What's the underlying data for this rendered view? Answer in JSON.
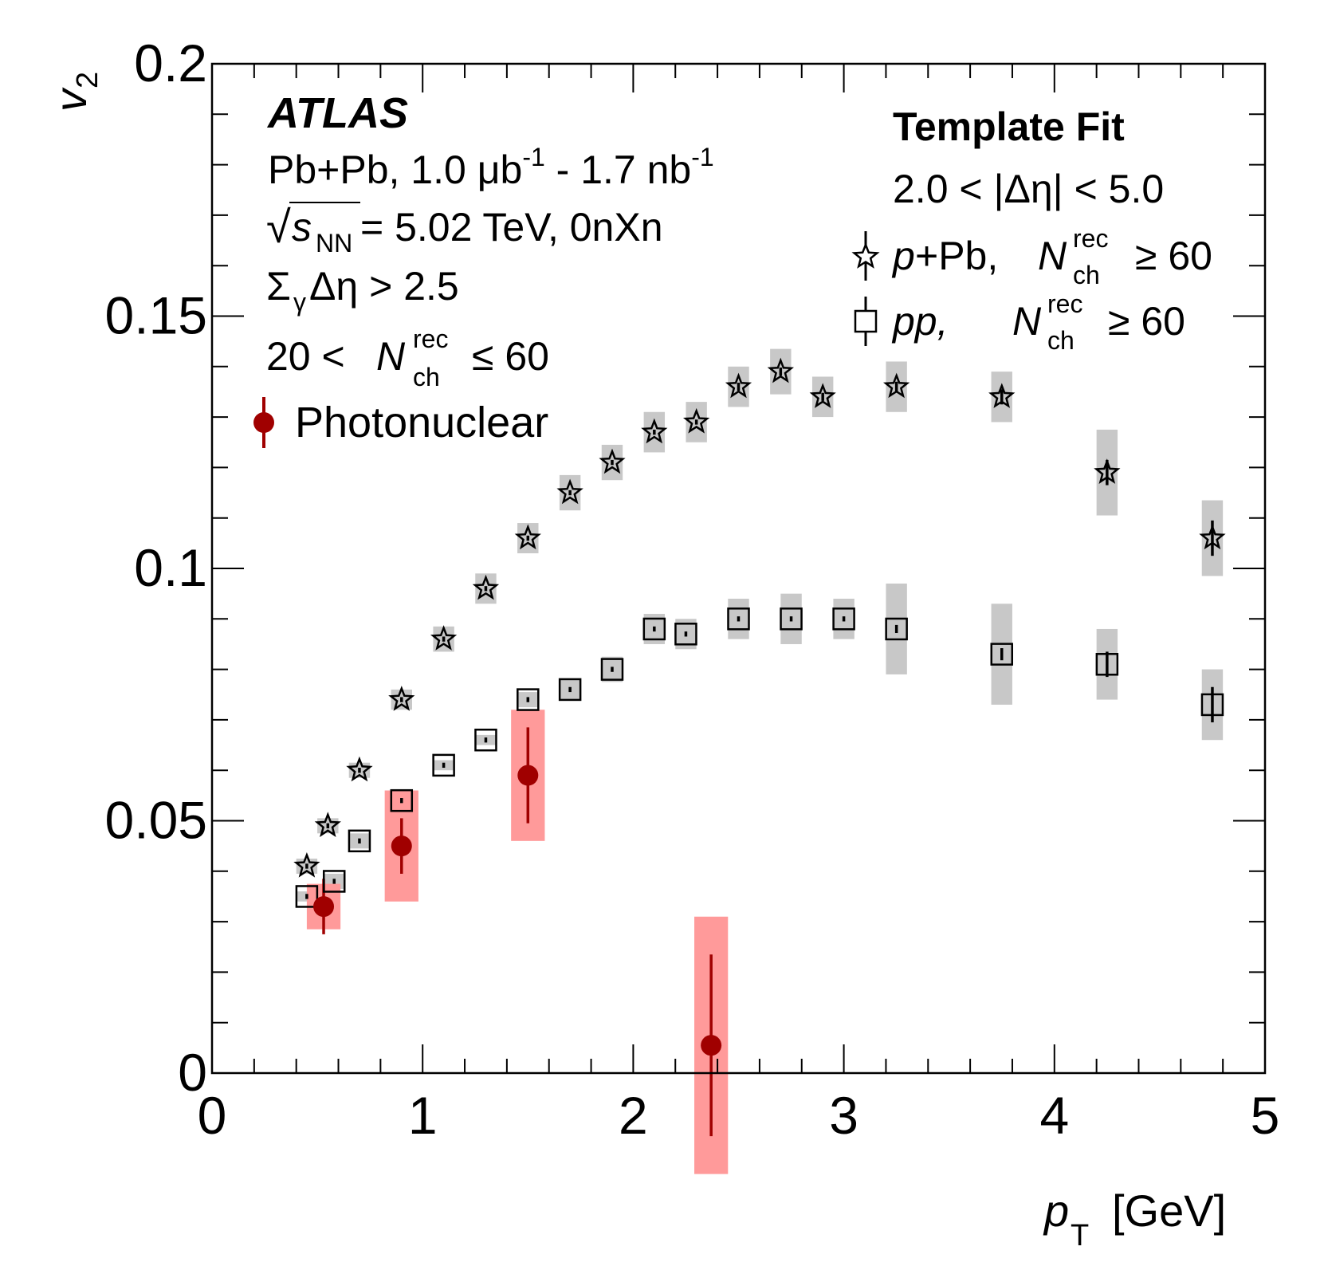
{
  "chart_data": {
    "type": "scatter",
    "title": "",
    "xlabel": "p_T [GeV]",
    "xlabel_main": "p",
    "xlabel_sub": "T",
    "xlabel_unit": "[GeV]",
    "ylabel": "v_2",
    "ylabel_main": "v",
    "ylabel_sub": "2",
    "xlim": [
      0,
      5
    ],
    "ylim": [
      0,
      0.2
    ],
    "x_ticks": [
      0,
      1,
      2,
      3,
      4,
      5
    ],
    "x_tick_labels": [
      "0",
      "1",
      "2",
      "3",
      "4",
      "5"
    ],
    "y_ticks": [
      0,
      0.05,
      0.1,
      0.15,
      0.2
    ],
    "y_tick_labels": [
      "0",
      "0.05",
      "0.1",
      "0.15",
      "0.2"
    ],
    "grid": false,
    "series": [
      {
        "name": "p+Pb, N_ch^rec >= 60",
        "marker": "open-star",
        "syst_color": "#c8c8c8",
        "points": [
          {
            "x": 0.45,
            "y": 0.041,
            "stat": 0.0005,
            "syst": 0.0015,
            "xerr": 0.05
          },
          {
            "x": 0.55,
            "y": 0.049,
            "stat": 0.0005,
            "syst": 0.0015,
            "xerr": 0.05
          },
          {
            "x": 0.7,
            "y": 0.06,
            "stat": 0.0005,
            "syst": 0.0015,
            "xerr": 0.05
          },
          {
            "x": 0.9,
            "y": 0.074,
            "stat": 0.0005,
            "syst": 0.002,
            "xerr": 0.05
          },
          {
            "x": 1.1,
            "y": 0.086,
            "stat": 0.0005,
            "syst": 0.0025,
            "xerr": 0.05
          },
          {
            "x": 1.3,
            "y": 0.096,
            "stat": 0.0005,
            "syst": 0.003,
            "xerr": 0.05
          },
          {
            "x": 1.5,
            "y": 0.106,
            "stat": 0.0005,
            "syst": 0.003,
            "xerr": 0.05
          },
          {
            "x": 1.7,
            "y": 0.115,
            "stat": 0.0005,
            "syst": 0.0035,
            "xerr": 0.05
          },
          {
            "x": 1.9,
            "y": 0.121,
            "stat": 0.0005,
            "syst": 0.0035,
            "xerr": 0.05
          },
          {
            "x": 2.1,
            "y": 0.127,
            "stat": 0.0005,
            "syst": 0.004,
            "xerr": 0.05
          },
          {
            "x": 2.3,
            "y": 0.129,
            "stat": 0.0005,
            "syst": 0.004,
            "xerr": 0.05
          },
          {
            "x": 2.5,
            "y": 0.136,
            "stat": 0.0008,
            "syst": 0.004,
            "xerr": 0.05
          },
          {
            "x": 2.7,
            "y": 0.139,
            "stat": 0.0008,
            "syst": 0.0045,
            "xerr": 0.05
          },
          {
            "x": 2.9,
            "y": 0.134,
            "stat": 0.0008,
            "syst": 0.004,
            "xerr": 0.05
          },
          {
            "x": 3.25,
            "y": 0.136,
            "stat": 0.001,
            "syst": 0.005,
            "xerr": 0.05
          },
          {
            "x": 3.75,
            "y": 0.134,
            "stat": 0.0015,
            "syst": 0.005,
            "xerr": 0.05
          },
          {
            "x": 4.25,
            "y": 0.119,
            "stat": 0.0025,
            "syst": 0.0085,
            "xerr": 0.05
          },
          {
            "x": 4.75,
            "y": 0.106,
            "stat": 0.0035,
            "syst": 0.0075,
            "xerr": 0.05
          }
        ]
      },
      {
        "name": "pp, N_ch^rec >= 60",
        "marker": "open-square",
        "syst_color": "#c8c8c8",
        "points": [
          {
            "x": 0.45,
            "y": 0.035,
            "stat": 0.0005,
            "syst": 0.001,
            "xerr": 0.05
          },
          {
            "x": 0.58,
            "y": 0.038,
            "stat": 0.0005,
            "syst": 0.0015,
            "xerr": 0.05
          },
          {
            "x": 0.7,
            "y": 0.046,
            "stat": 0.0005,
            "syst": 0.0015,
            "xerr": 0.05
          },
          {
            "x": 0.9,
            "y": 0.054,
            "stat": 0.0005,
            "syst": 0.001,
            "xerr": 0.05
          },
          {
            "x": 1.1,
            "y": 0.061,
            "stat": 0.0005,
            "syst": 0.001,
            "xerr": 0.05
          },
          {
            "x": 1.3,
            "y": 0.066,
            "stat": 0.0005,
            "syst": 0.001,
            "xerr": 0.05
          },
          {
            "x": 1.5,
            "y": 0.074,
            "stat": 0.0005,
            "syst": 0.0015,
            "xerr": 0.05
          },
          {
            "x": 1.7,
            "y": 0.076,
            "stat": 0.0005,
            "syst": 0.002,
            "xerr": 0.05
          },
          {
            "x": 1.9,
            "y": 0.08,
            "stat": 0.0005,
            "syst": 0.0025,
            "xerr": 0.05
          },
          {
            "x": 2.1,
            "y": 0.088,
            "stat": 0.0005,
            "syst": 0.003,
            "xerr": 0.05
          },
          {
            "x": 2.25,
            "y": 0.087,
            "stat": 0.0005,
            "syst": 0.003,
            "xerr": 0.05
          },
          {
            "x": 2.5,
            "y": 0.09,
            "stat": 0.0005,
            "syst": 0.004,
            "xerr": 0.05
          },
          {
            "x": 2.75,
            "y": 0.09,
            "stat": 0.0005,
            "syst": 0.005,
            "xerr": 0.05
          },
          {
            "x": 3.0,
            "y": 0.09,
            "stat": 0.0005,
            "syst": 0.004,
            "xerr": 0.05
          },
          {
            "x": 3.25,
            "y": 0.088,
            "stat": 0.0008,
            "syst": 0.009,
            "xerr": 0.05
          },
          {
            "x": 3.75,
            "y": 0.083,
            "stat": 0.0012,
            "syst": 0.01,
            "xerr": 0.05
          },
          {
            "x": 4.25,
            "y": 0.081,
            "stat": 0.0025,
            "syst": 0.007,
            "xerr": 0.05
          },
          {
            "x": 4.75,
            "y": 0.073,
            "stat": 0.0035,
            "syst": 0.007,
            "xerr": 0.05
          }
        ]
      },
      {
        "name": "Photonuclear",
        "marker": "filled-circle",
        "color": "#a00000",
        "syst_color": "#ff9a9a",
        "points": [
          {
            "x": 0.53,
            "y": 0.033,
            "stat": 0.0055,
            "syst": 0.0045,
            "xerr": 0.08
          },
          {
            "x": 0.9,
            "y": 0.045,
            "stat": 0.0055,
            "syst": 0.011,
            "xerr": 0.08
          },
          {
            "x": 1.5,
            "y": 0.059,
            "stat": 0.0095,
            "syst": 0.013,
            "xerr": 0.08
          },
          {
            "x": 2.37,
            "y": 0.0055,
            "stat": 0.018,
            "syst": 0.0255,
            "xerr": 0.08
          }
        ]
      }
    ]
  },
  "labels": {
    "experiment": "ATLAS",
    "system_prefix": "Pb+Pb, 1.0 μb",
    "exp1": "-1",
    "system_mid": " - 1.7 nb",
    "exp2": "-1",
    "sqrt_sym": "√",
    "sqrt_s": "s",
    "sqrt_sub": "NN",
    "energy": " = 5.02 TeV, 0nXn",
    "gap_sigma": "Σ",
    "gap_sub": "γ",
    "gap_rest": "Δη > 2.5",
    "nch_prefix": "20 < ",
    "nch_N": "N",
    "nch_sup": "rec",
    "nch_sub": "ch",
    "nch_suffix": "≤ 60",
    "method": "Template Fit",
    "eta_range": "2.0 < |Δη| < 5.0"
  },
  "legend": {
    "photonuclear": "Photonuclear",
    "ppb_p": "p",
    "ppb_rest": "+Pb, ",
    "pp_label": "pp,",
    "N": "N",
    "sup": "rec",
    "sub": "ch",
    "cond": "≥ 60"
  }
}
